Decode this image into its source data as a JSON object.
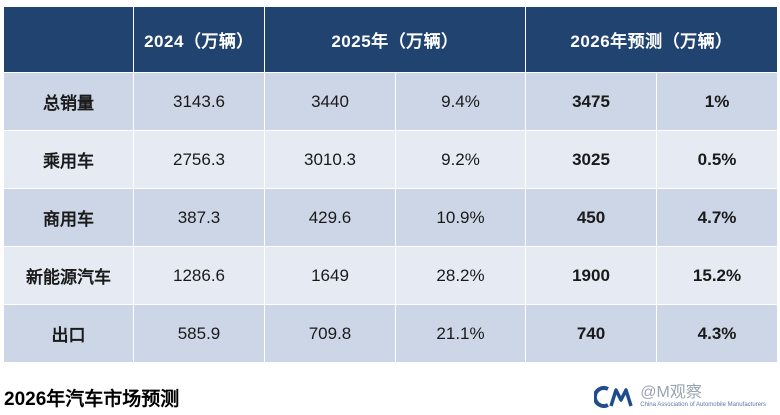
{
  "table": {
    "headers": [
      "",
      "2024（万辆）",
      "2025年（万辆）",
      "2026年预测（万辆）"
    ],
    "rows": [
      {
        "label": "总销量",
        "v2024": "3143.6",
        "v2025": "3440",
        "g2025": "9.4%",
        "v2026": "3475",
        "g2026": "1%"
      },
      {
        "label": "乘用车",
        "v2024": "2756.3",
        "v2025": "3010.3",
        "g2025": "9.2%",
        "v2026": "3025",
        "g2026": "0.5%"
      },
      {
        "label": "商用车",
        "v2024": "387.3",
        "v2025": "429.6",
        "g2025": "10.9%",
        "v2026": "450",
        "g2026": "4.7%"
      },
      {
        "label": "新能源汽车",
        "v2024": "1286.6",
        "v2025": "1649",
        "g2025": "28.2%",
        "v2026": "1900",
        "g2026": "15.2%"
      },
      {
        "label": "出口",
        "v2024": "585.9",
        "v2025": "709.8",
        "g2025": "21.1%",
        "v2026": "740",
        "g2026": "4.3%"
      }
    ]
  },
  "caption": "2026年汽车市场预测",
  "watermark": {
    "text": "@M观察",
    "sub": "China Association of Automobile Manufacturers",
    "logo_icon": "cam-logo-icon"
  },
  "colors": {
    "header_bg": "#20446f",
    "row_dark": "#ccd6e6",
    "row_light": "#e6ebf3"
  }
}
